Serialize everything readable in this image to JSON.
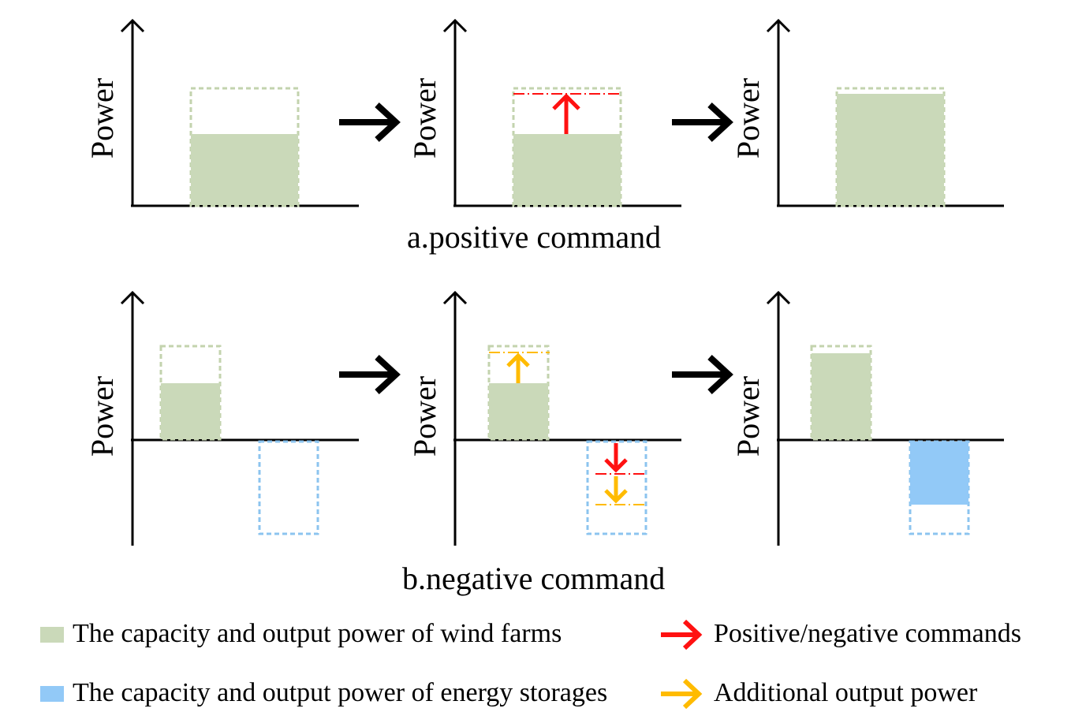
{
  "axis_label": "Power",
  "captions": {
    "positive": "a.positive command",
    "negative": "b.negative command"
  },
  "legend": {
    "wind": "The capacity and output power of wind farms",
    "storage": "The capacity and output power of energy storages",
    "command": "Positive/negative commands",
    "additional": "Additional output power"
  },
  "colors": {
    "wind_fill": "#cad9b9",
    "wind_outline": "#c3d3ae",
    "storage_fill": "#92c9f7",
    "storage_outline": "#8cc4ef",
    "command_arrow": "#ff1111",
    "additional_arrow": "#ffbb00",
    "flow_arrow": "#000000"
  }
}
